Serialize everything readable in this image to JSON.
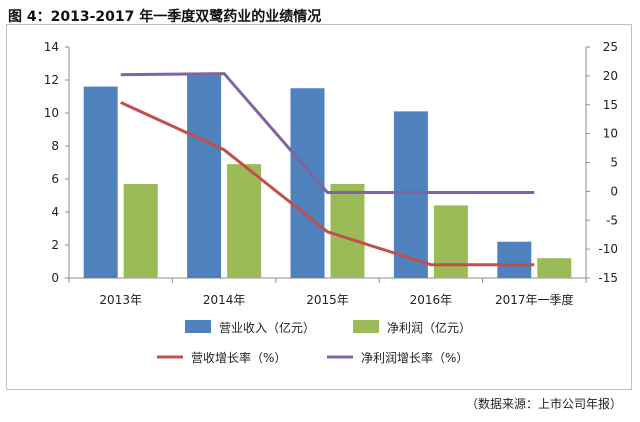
{
  "figure": {
    "title": "图 4：2013-2017 年一季度双鹭药业的业绩情况",
    "source": "（数据来源：上市公司年报）"
  },
  "chart_data": {
    "type": "bar",
    "title": "",
    "categories": [
      "2013年",
      "2014年",
      "2015年",
      "2016年",
      "2017年一季度"
    ],
    "series": [
      {
        "name": "营业收入（亿元）",
        "kind": "bar",
        "axis": "left",
        "color": "#4f81bd",
        "values": [
          11.6,
          12.3,
          11.5,
          10.1,
          2.2
        ]
      },
      {
        "name": "净利润（亿元）",
        "kind": "bar",
        "axis": "left",
        "color": "#9bbb59",
        "values": [
          5.7,
          6.9,
          5.7,
          4.4,
          1.2
        ]
      },
      {
        "name": "营收增长率（%）",
        "kind": "line",
        "axis": "right",
        "color": "#c0504d",
        "values": [
          15.4,
          7.2,
          -7.0,
          -12.7,
          -12.7
        ]
      },
      {
        "name": "净利润增长率（%）",
        "kind": "line",
        "axis": "right",
        "color": "#8064a2",
        "values": [
          20.2,
          20.4,
          -0.2,
          -0.2,
          -0.2
        ]
      }
    ],
    "y_left": {
      "min": 0,
      "max": 14,
      "step": 2,
      "ticks": [
        "0",
        "2",
        "4",
        "6",
        "8",
        "10",
        "12",
        "14"
      ]
    },
    "y_right": {
      "min": -15,
      "max": 25,
      "step": 5,
      "ticks": [
        "-15",
        "-10",
        "-5",
        "0",
        "5",
        "10",
        "15",
        "20",
        "25"
      ]
    },
    "grid": false,
    "legend_position": "bottom"
  }
}
